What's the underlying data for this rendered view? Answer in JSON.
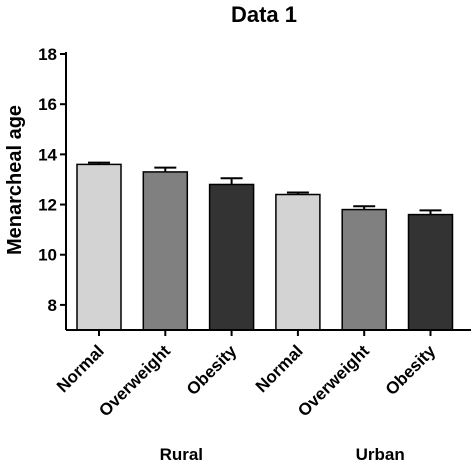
{
  "chart_data": {
    "type": "bar",
    "title": "Data 1",
    "xlabel": "",
    "ylabel": "Menarcheal age",
    "ylim": [
      7,
      18
    ],
    "yticks": [
      8,
      10,
      12,
      14,
      16,
      18
    ],
    "grid": false,
    "categories": [
      "Normal",
      "Overweight",
      "Obesity",
      "Normal",
      "Overweight",
      "Obesity"
    ],
    "groups": [
      {
        "label": "Rural",
        "indices": [
          0,
          1,
          2
        ]
      },
      {
        "label": "Urban",
        "indices": [
          3,
          4,
          5
        ]
      }
    ],
    "values": [
      13.6,
      13.3,
      12.8,
      12.4,
      11.8,
      11.6
    ],
    "errors": [
      0.07,
      0.17,
      0.25,
      0.08,
      0.13,
      0.17
    ],
    "colors": [
      "#d3d3d3",
      "#808080",
      "#333333",
      "#d3d3d3",
      "#808080",
      "#333333"
    ]
  }
}
